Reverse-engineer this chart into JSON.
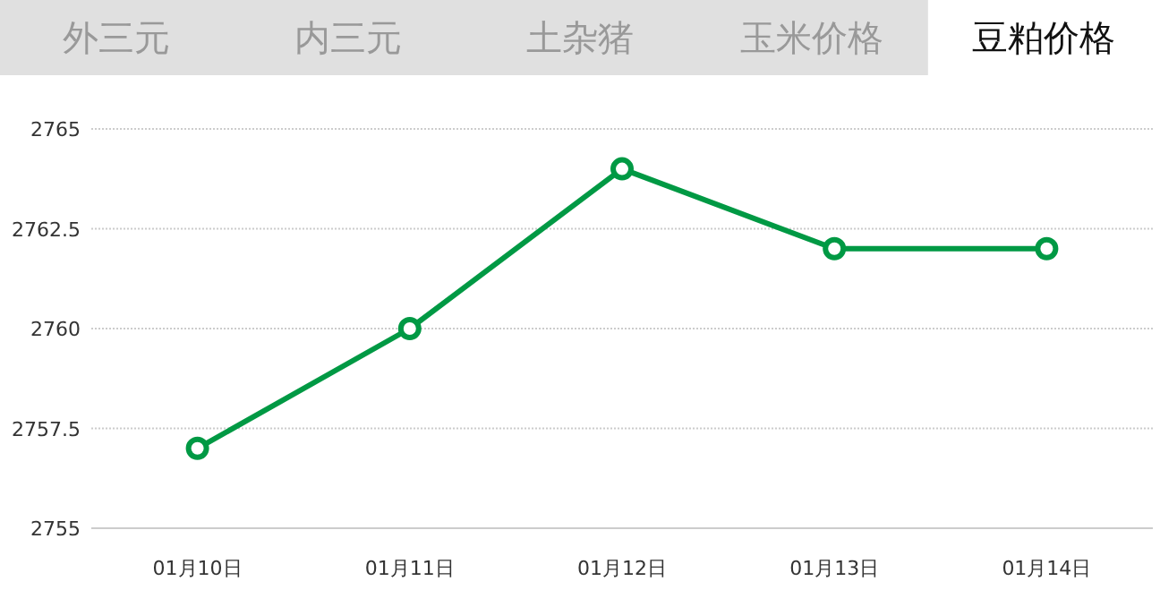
{
  "chart_data": {
    "type": "line",
    "title": "豆粕价格",
    "annotations": [
      "外三元",
      "内三元",
      "土杂猪",
      "玉米价格"
    ],
    "categories": [
      "01月10日",
      "01月11日",
      "01月12日",
      "01月13日",
      "01月14日"
    ],
    "series": [
      {
        "color": "#009944",
        "values": [
          2757,
          2760,
          2764,
          2762,
          2762
        ]
      }
    ],
    "ylim": [
      2755,
      2765
    ],
    "yticks": [
      2755,
      2757.5,
      2760,
      2762.5,
      2765
    ],
    "grid": "y",
    "marker": "circle"
  }
}
